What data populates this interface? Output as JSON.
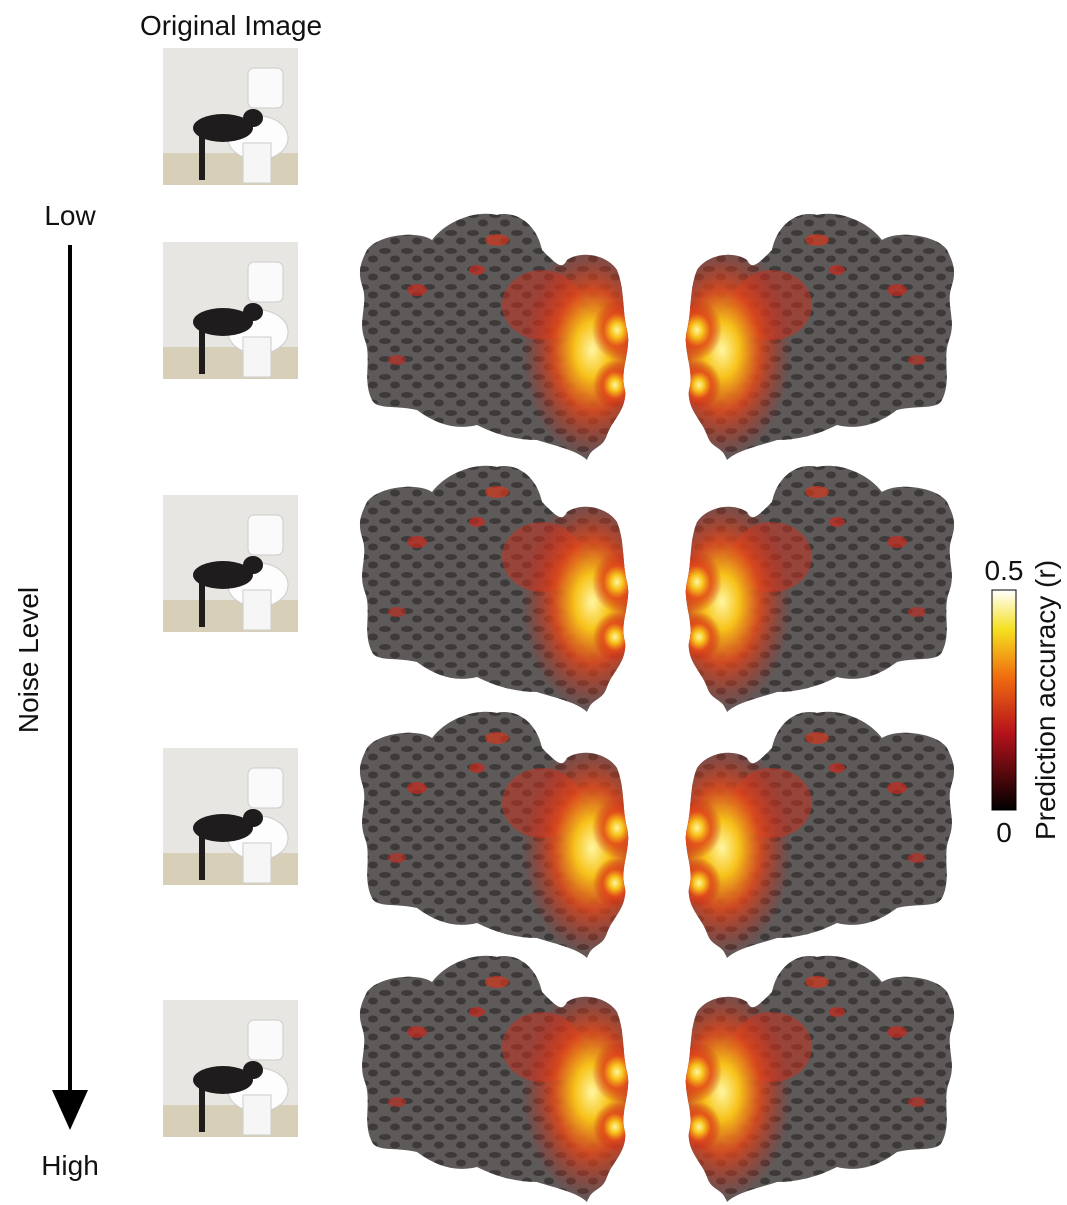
{
  "header": {
    "title": "Original Image"
  },
  "noise_axis": {
    "label": "Noise Level",
    "low": "Low",
    "high": "High"
  },
  "colorbar": {
    "label": "Prediction accuracy (r)",
    "ticks": [
      0,
      0.5
    ]
  }
}
